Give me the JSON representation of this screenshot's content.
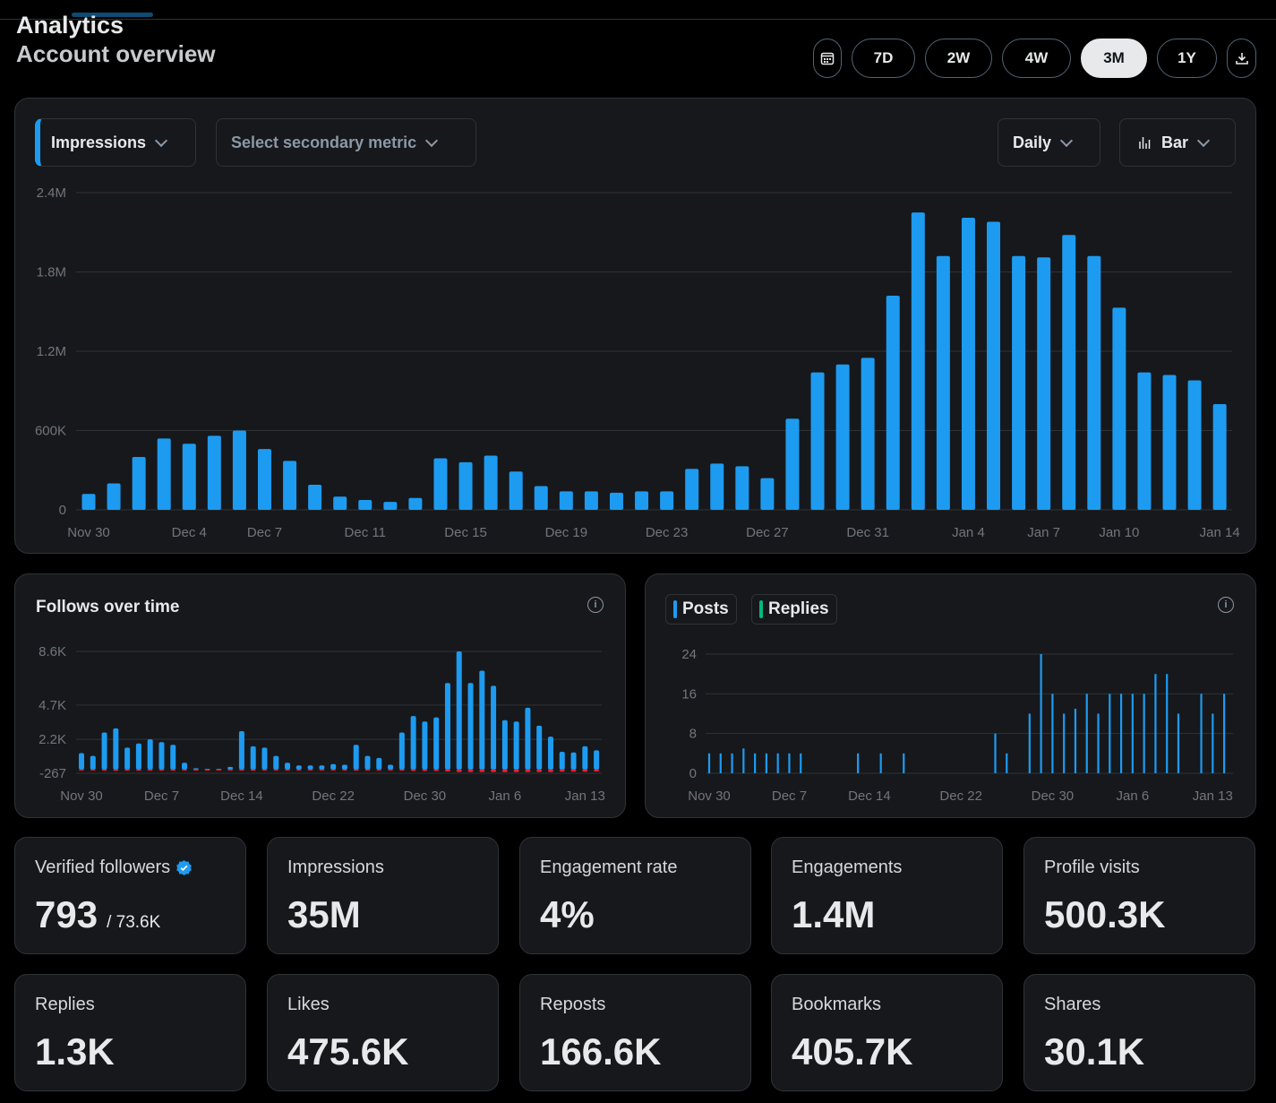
{
  "header": {
    "title": "Analytics",
    "subtitle": "Account overview"
  },
  "range_buttons": [
    {
      "label": "7D"
    },
    {
      "label": "2W"
    },
    {
      "label": "4W"
    },
    {
      "label": "3M",
      "active": true
    },
    {
      "label": "1Y"
    }
  ],
  "icons": {
    "calendar": "calendar-icon",
    "download": "download-icon",
    "bar": "bar-chart-icon",
    "info": "info-icon",
    "verified": "verified-badge-icon"
  },
  "colors": {
    "accent": "#1d9bf0",
    "replies": "#00ba7c",
    "unfollows": "#f4212e"
  },
  "main_chart": {
    "primary_metric": "Impressions",
    "secondary_placeholder": "Select secondary metric",
    "interval": "Daily",
    "chart_type": "Bar"
  },
  "follows_panel": {
    "title": "Follows over time",
    "info": "i"
  },
  "posts_panel": {
    "legend": [
      {
        "name": "Posts"
      },
      {
        "name": "Replies"
      }
    ],
    "info": "i"
  },
  "stats": [
    {
      "label": "Verified followers",
      "value": "793",
      "sub": "/ 73.6K",
      "verified": true
    },
    {
      "label": "Impressions",
      "value": "35M"
    },
    {
      "label": "Engagement rate",
      "value": "4%"
    },
    {
      "label": "Engagements",
      "value": "1.4M"
    },
    {
      "label": "Profile visits",
      "value": "500.3K"
    },
    {
      "label": "Replies",
      "value": "1.3K"
    },
    {
      "label": "Likes",
      "value": "475.6K"
    },
    {
      "label": "Reposts",
      "value": "166.6K"
    },
    {
      "label": "Bookmarks",
      "value": "405.7K"
    },
    {
      "label": "Shares",
      "value": "30.1K"
    }
  ],
  "chart_data": [
    {
      "type": "bar",
      "name": "Impressions",
      "ylim": [
        0,
        2400000
      ],
      "grid": true,
      "yticks": [
        {
          "v": 0,
          "label": "0"
        },
        {
          "v": 600000,
          "label": "600K"
        },
        {
          "v": 1200000,
          "label": "1.2M"
        },
        {
          "v": 1800000,
          "label": "1.8M"
        },
        {
          "v": 2400000,
          "label": "2.4M"
        }
      ],
      "xticks": [
        {
          "i": 0,
          "label": "Nov 30"
        },
        {
          "i": 4,
          "label": "Dec 4"
        },
        {
          "i": 7,
          "label": "Dec 7"
        },
        {
          "i": 11,
          "label": "Dec 11"
        },
        {
          "i": 15,
          "label": "Dec 15"
        },
        {
          "i": 19,
          "label": "Dec 19"
        },
        {
          "i": 23,
          "label": "Dec 23"
        },
        {
          "i": 27,
          "label": "Dec 27"
        },
        {
          "i": 31,
          "label": "Dec 31"
        },
        {
          "i": 35,
          "label": "Jan 4"
        },
        {
          "i": 38,
          "label": "Jan 7"
        },
        {
          "i": 41,
          "label": "Jan 10"
        },
        {
          "i": 45,
          "label": "Jan 14"
        }
      ],
      "values": [
        120000,
        200000,
        400000,
        540000,
        500000,
        560000,
        600000,
        460000,
        370000,
        190000,
        100000,
        75000,
        60000,
        90000,
        390000,
        360000,
        410000,
        290000,
        180000,
        140000,
        140000,
        130000,
        140000,
        140000,
        310000,
        350000,
        330000,
        240000,
        690000,
        1040000,
        1100000,
        1150000,
        1620000,
        2250000,
        1920000,
        2210000,
        2180000,
        1920000,
        1910000,
        2080000,
        1920000,
        1530000,
        1040000,
        1020000,
        980000,
        800000
      ]
    },
    {
      "type": "bar",
      "title": "Follows over time",
      "ylim": [
        -267,
        8600
      ],
      "grid": true,
      "yticks": [
        {
          "v": -267,
          "label": "-267"
        },
        {
          "v": 2200,
          "label": "2.2K"
        },
        {
          "v": 4700,
          "label": "4.7K"
        },
        {
          "v": 8600,
          "label": "8.6K"
        }
      ],
      "xticks": [
        {
          "i": 0,
          "label": "Nov 30"
        },
        {
          "i": 7,
          "label": "Dec 7"
        },
        {
          "i": 14,
          "label": "Dec 14"
        },
        {
          "i": 22,
          "label": "Dec 22"
        },
        {
          "i": 30,
          "label": "Dec 30"
        },
        {
          "i": 37,
          "label": "Jan 6"
        },
        {
          "i": 44,
          "label": "Jan 13"
        }
      ],
      "series": [
        {
          "values": [
            1200,
            1000,
            2700,
            3000,
            1600,
            1900,
            2200,
            2000,
            1800,
            500,
            100,
            50,
            50,
            200,
            2800,
            1700,
            1600,
            1000,
            500,
            300,
            300,
            300,
            400,
            350,
            1800,
            1000,
            850,
            350,
            2700,
            3900,
            3500,
            3800,
            6300,
            8600,
            6300,
            7200,
            6100,
            3600,
            3500,
            4500,
            3200,
            2400,
            1300,
            1250,
            1700,
            1400
          ]
        },
        {
          "values": [
            -60,
            -60,
            -70,
            -80,
            -70,
            -70,
            -70,
            -70,
            -70,
            -60,
            -60,
            -60,
            -60,
            -60,
            -70,
            -70,
            -60,
            -60,
            -60,
            -60,
            -60,
            -60,
            -60,
            -60,
            -70,
            -60,
            -60,
            -60,
            -70,
            -100,
            -100,
            -100,
            -140,
            -180,
            -180,
            -180,
            -180,
            -180,
            -180,
            -180,
            -180,
            -180,
            -150,
            -150,
            -150,
            -140
          ]
        }
      ]
    },
    {
      "type": "bar",
      "ylim": [
        0,
        24
      ],
      "grid": true,
      "yticks": [
        {
          "v": 0,
          "label": "0"
        },
        {
          "v": 8,
          "label": "8"
        },
        {
          "v": 16,
          "label": "16"
        },
        {
          "v": 24,
          "label": "24"
        }
      ],
      "xticks": [
        {
          "i": 0,
          "label": "Nov 30"
        },
        {
          "i": 7,
          "label": "Dec 7"
        },
        {
          "i": 14,
          "label": "Dec 14"
        },
        {
          "i": 22,
          "label": "Dec 22"
        },
        {
          "i": 30,
          "label": "Dec 30"
        },
        {
          "i": 37,
          "label": "Jan 6"
        },
        {
          "i": 44,
          "label": "Jan 13"
        }
      ],
      "series": [
        {
          "name": "Posts",
          "values": [
            4,
            4,
            4,
            5,
            4,
            4,
            4,
            4,
            4,
            0,
            0,
            0,
            0,
            4,
            0,
            4,
            0,
            4,
            0,
            0,
            0,
            0,
            0,
            0,
            0,
            8,
            4,
            0,
            12,
            24,
            16,
            12,
            13,
            16,
            12,
            16,
            16,
            16,
            16,
            20,
            20,
            12,
            0,
            16,
            12,
            16
          ]
        },
        {
          "name": "Replies",
          "values": [
            0,
            0,
            0,
            0,
            0,
            0,
            0,
            0,
            0,
            0,
            0,
            0,
            0,
            0,
            0,
            0,
            0,
            0,
            0,
            0,
            0,
            0,
            0,
            0,
            0,
            0,
            0,
            0,
            0,
            0,
            0,
            0,
            0,
            0,
            0,
            0,
            0,
            0,
            0,
            0,
            0,
            0,
            0,
            0,
            0,
            0
          ]
        }
      ]
    }
  ]
}
